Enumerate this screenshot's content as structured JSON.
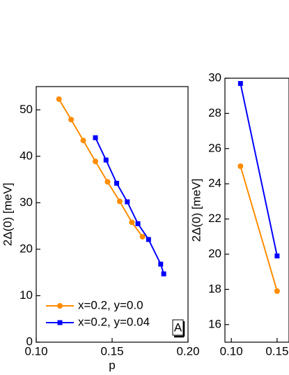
{
  "chart_data": [
    {
      "type": "line",
      "xlabel": "p",
      "ylabel": "2Δ(0) [meV]",
      "panel_label": "A",
      "xlim": [
        0.1,
        0.2
      ],
      "ylim": [
        0,
        55
      ],
      "xticks": [
        {
          "value": 0.1,
          "label": "0.10"
        },
        {
          "value": 0.15,
          "label": "0.15"
        },
        {
          "value": 0.2,
          "label": "0.20"
        }
      ],
      "yticks": [
        0,
        10,
        20,
        30,
        40,
        50
      ],
      "legend": "lower left",
      "series": [
        {
          "name": "x=0.2, y=0.0",
          "color": "#ff8c00",
          "marker": "circle",
          "x": [
            0.115,
            0.123,
            0.131,
            0.139,
            0.147,
            0.155,
            0.163,
            0.17
          ],
          "values": [
            52.3,
            47.9,
            43.4,
            38.9,
            34.5,
            30.3,
            25.8,
            22.7
          ]
        },
        {
          "name": "x=0.2, y=0.04",
          "color": "#0000ff",
          "marker": "square",
          "x": [
            0.139,
            0.146,
            0.153,
            0.16,
            0.167,
            0.174,
            0.182,
            0.184
          ],
          "values": [
            44.0,
            39.2,
            34.2,
            30.2,
            25.5,
            22.1,
            16.8,
            14.7
          ]
        }
      ]
    },
    {
      "type": "line",
      "ylabel": "2Δ(0) [meV]",
      "xlim": [
        0.093,
        0.163
      ],
      "ylim": [
        15,
        30
      ],
      "xticks": [
        {
          "value": 0.1,
          "label": "0.10"
        },
        {
          "value": 0.15,
          "label": "0.15"
        }
      ],
      "yticks": [
        16,
        18,
        20,
        22,
        24,
        26,
        28,
        30
      ],
      "series": [
        {
          "color": "#ff8c00",
          "marker": "circle",
          "x": [
            0.11,
            0.15
          ],
          "values": [
            25.0,
            17.9
          ]
        },
        {
          "color": "#0000ff",
          "marker": "square",
          "x": [
            0.11,
            0.15
          ],
          "values": [
            29.7,
            19.9
          ]
        }
      ]
    }
  ]
}
